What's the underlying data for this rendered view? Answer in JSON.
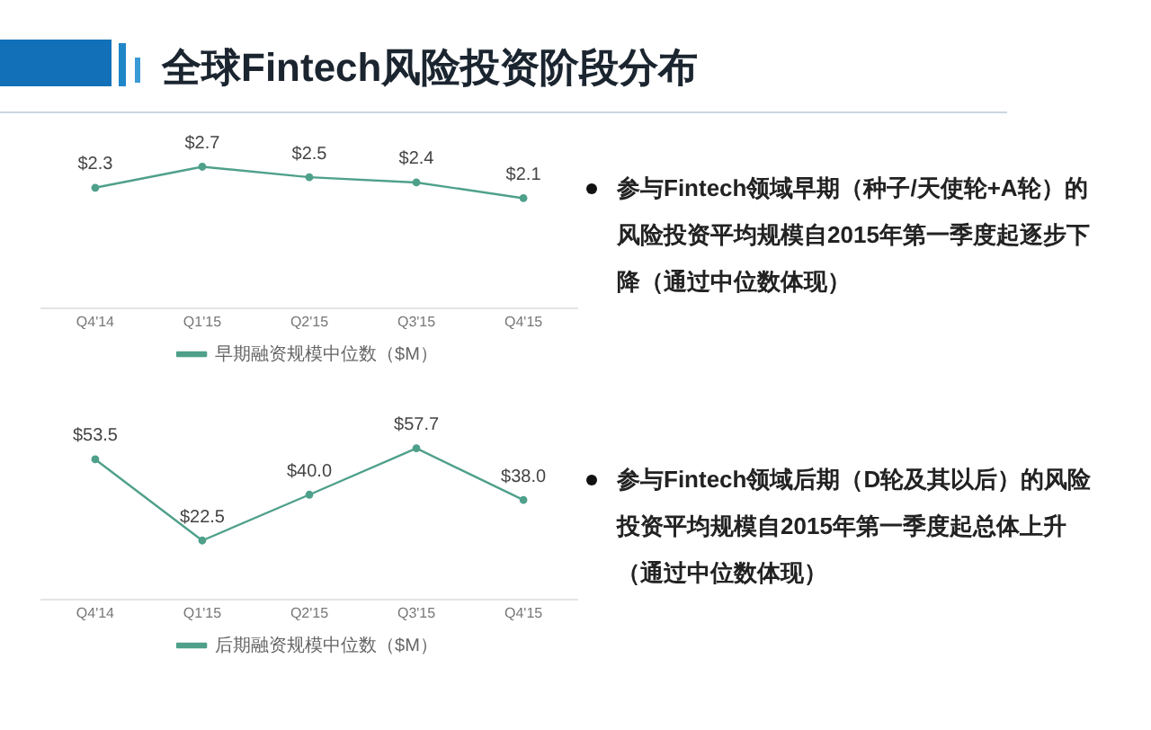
{
  "chart_data": [
    {
      "type": "line",
      "title": "全球Fintech风险投资阶段分布",
      "categories": [
        "Q4'14",
        "Q1'15",
        "Q2'15",
        "Q3'15",
        "Q4'15"
      ],
      "series": [
        {
          "name": "早期融资规模中位数（$M）",
          "color": "#4fa08b",
          "values": [
            2.3,
            2.7,
            2.5,
            2.4,
            2.1
          ],
          "value_labels": [
            "$2.3",
            "$2.7",
            "$2.5",
            "$2.4",
            "$2.1"
          ]
        }
      ],
      "annotations": [
        "参与Fintech领域早期（种子/天使轮+A轮）的风险投资平均规模自2015年第一季度起逐步下降（通过中位数体现）"
      ],
      "legend": "bottom",
      "grid": false,
      "marker": "circle",
      "tick_labels": "x"
    },
    {
      "type": "line",
      "categories": [
        "Q4'14",
        "Q1'15",
        "Q2'15",
        "Q3'15",
        "Q4'15"
      ],
      "series": [
        {
          "name": "后期融资规模中位数（$M）",
          "color": "#4fa08b",
          "values": [
            53.5,
            22.5,
            40.0,
            57.7,
            38.0
          ],
          "value_labels": [
            "$53.5",
            "$22.5",
            "$40.0",
            "$57.7",
            "$38.0"
          ]
        }
      ],
      "annotations": [
        "参与Fintech领域后期（D轮及其以后）的风险投资平均规模自2015年第一季度起总体上升（通过中位数体现）"
      ],
      "legend": "bottom",
      "grid": false,
      "marker": "circle",
      "tick_labels": "x"
    }
  ]
}
